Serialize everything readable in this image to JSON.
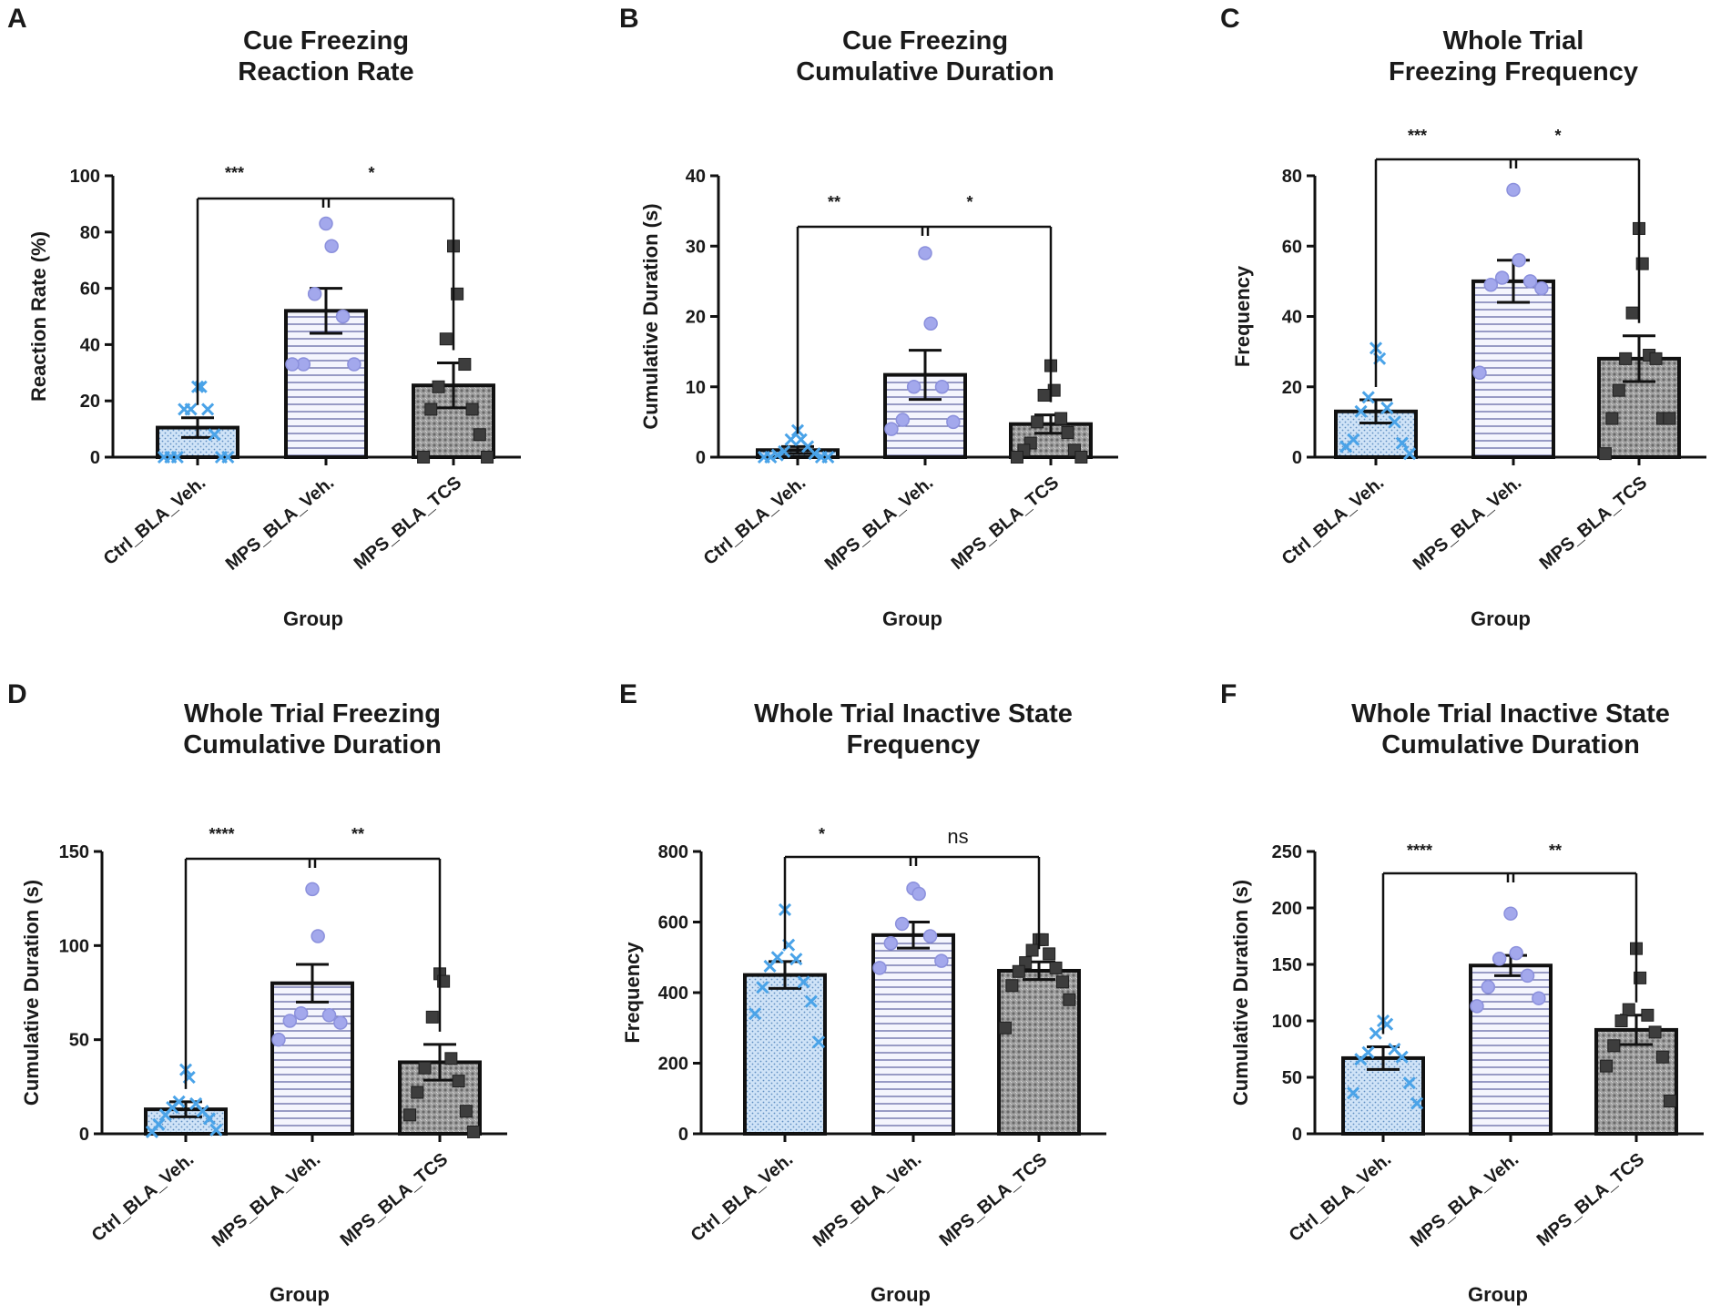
{
  "figure": {
    "colors": {
      "ctrl": "#4aa3e8",
      "ctrl_fill": "#cfe3f7",
      "mps": "#a3a8ec",
      "mps_fill": "#eef0fb",
      "tcs": "#3d3d3d",
      "tcs_fill": "#9a9a9a",
      "axis": "#111111"
    }
  },
  "chart_data": [
    {
      "id": "A",
      "letter": "A",
      "type": "bar",
      "title_lines": [
        "Cue Freezing",
        "Reaction Rate"
      ],
      "ylabel": "Reaction Rate (%)",
      "xlabel": "Group",
      "categories": [
        "Ctrl_BLA_Veh.",
        "MPS_BLA_Veh.",
        "MPS_BLA_TCS"
      ],
      "ylim": [
        0,
        100
      ],
      "yticks": [
        0,
        20,
        40,
        60,
        80,
        100
      ],
      "means": [
        10.5,
        52,
        25.5
      ],
      "sems": [
        3.5,
        8,
        8
      ],
      "points": [
        [
          25,
          25,
          17,
          17,
          17,
          8,
          0,
          0,
          0,
          0,
          0
        ],
        [
          83,
          75,
          58,
          50,
          33,
          33,
          33
        ],
        [
          75,
          58,
          42,
          33,
          25,
          17,
          17,
          8,
          0,
          0
        ]
      ],
      "significance": [
        {
          "from": 0,
          "to": 1,
          "label": "***"
        },
        {
          "from": 1,
          "to": 2,
          "label": "*"
        }
      ]
    },
    {
      "id": "B",
      "letter": "B",
      "type": "bar",
      "title_lines": [
        "Cue Freezing",
        "Cumulative Duration"
      ],
      "ylabel": "Cumulative Duration (s)",
      "xlabel": "Group",
      "categories": [
        "Ctrl_BLA_Veh.",
        "MPS_BLA_Veh.",
        "MPS_BLA_TCS"
      ],
      "ylim": [
        0,
        40
      ],
      "yticks": [
        0,
        10,
        20,
        30,
        40
      ],
      "means": [
        1.0,
        11.7,
        4.7
      ],
      "sems": [
        0.5,
        3.5,
        1.3
      ],
      "points": [
        [
          3.8,
          2.5,
          2.5,
          1.5,
          0.8,
          0.5,
          0.3,
          0,
          0,
          0,
          0
        ],
        [
          29,
          19,
          10,
          10,
          5.3,
          5,
          4
        ],
        [
          13,
          9.5,
          8.8,
          5.5,
          5,
          3.5,
          2,
          1,
          1,
          0,
          0
        ]
      ],
      "significance": [
        {
          "from": 0,
          "to": 1,
          "label": "**"
        },
        {
          "from": 1,
          "to": 2,
          "label": "*"
        }
      ]
    },
    {
      "id": "C",
      "letter": "C",
      "type": "bar",
      "title_lines": [
        "Whole Trial",
        "Freezing Frequency"
      ],
      "ylabel": "Frequency",
      "xlabel": "Group",
      "categories": [
        "Ctrl_BLA_Veh.",
        "MPS_BLA_Veh.",
        "MPS_BLA_TCS"
      ],
      "ylim": [
        0,
        80
      ],
      "yticks": [
        0,
        20,
        40,
        60,
        80
      ],
      "means": [
        13,
        50,
        28
      ],
      "sems": [
        3.3,
        6,
        6.5
      ],
      "points": [
        [
          31,
          28,
          17,
          14,
          13,
          10,
          5,
          4,
          3,
          1
        ],
        [
          76,
          56,
          51,
          50,
          49,
          48,
          24
        ],
        [
          65,
          55,
          41,
          29,
          28,
          28,
          19,
          11,
          11,
          11,
          1
        ]
      ],
      "significance": [
        {
          "from": 0,
          "to": 1,
          "label": "***"
        },
        {
          "from": 1,
          "to": 2,
          "label": "*"
        }
      ]
    },
    {
      "id": "D",
      "letter": "D",
      "type": "bar",
      "title_lines": [
        "Whole Trial Freezing",
        "Cumulative Duration"
      ],
      "ylabel": "Cumulative Duration (s)",
      "xlabel": "Group",
      "categories": [
        "Ctrl_BLA_Veh.",
        "MPS_BLA_Veh.",
        "MPS_BLA_TCS"
      ],
      "ylim": [
        0,
        150
      ],
      "yticks": [
        0,
        50,
        100,
        150
      ],
      "means": [
        13,
        80,
        38
      ],
      "sems": [
        4,
        10,
        9.5
      ],
      "points": [
        [
          34,
          30,
          17,
          16,
          14,
          12,
          10,
          8,
          5,
          2,
          1
        ],
        [
          130,
          105,
          64,
          63,
          60,
          59,
          50
        ],
        [
          85,
          81,
          62,
          40,
          35,
          28,
          22,
          12,
          10,
          1
        ]
      ],
      "significance": [
        {
          "from": 0,
          "to": 1,
          "label": "****"
        },
        {
          "from": 1,
          "to": 2,
          "label": "**"
        }
      ]
    },
    {
      "id": "E",
      "letter": "E",
      "type": "bar",
      "title_lines": [
        "Whole Trial Inactive State",
        "Frequency"
      ],
      "ylabel": "Frequency",
      "xlabel": "Group",
      "categories": [
        "Ctrl_BLA_Veh.",
        "MPS_BLA_Veh.",
        "MPS_BLA_TCS"
      ],
      "ylim": [
        0,
        800
      ],
      "yticks": [
        0,
        200,
        400,
        600,
        800
      ],
      "means": [
        450,
        563,
        462
      ],
      "sems": [
        38,
        37,
        25
      ],
      "points": [
        [
          635,
          535,
          500,
          495,
          475,
          430,
          415,
          375,
          340,
          260
        ],
        [
          695,
          680,
          595,
          560,
          540,
          490,
          470
        ],
        [
          550,
          550,
          520,
          510,
          485,
          470,
          460,
          430,
          420,
          380,
          300
        ]
      ],
      "significance": [
        {
          "from": 0,
          "to": 1,
          "label": "*"
        },
        {
          "from": 1,
          "to": 2,
          "label": "ns"
        }
      ]
    },
    {
      "id": "F",
      "letter": "F",
      "type": "bar",
      "title_lines": [
        "Whole Trial Inactive State",
        "Cumulative Duration"
      ],
      "ylabel": "Cumulative Duration (s)",
      "xlabel": "Group",
      "categories": [
        "Ctrl_BLA_Veh.",
        "MPS_BLA_Veh.",
        "MPS_BLA_TCS"
      ],
      "ylim": [
        0,
        250
      ],
      "yticks": [
        0,
        50,
        100,
        150,
        200,
        250
      ],
      "means": [
        67,
        149,
        92
      ],
      "sems": [
        10,
        9,
        13
      ],
      "points": [
        [
          100,
          97,
          89,
          75,
          72,
          68,
          66,
          45,
          36,
          27
        ],
        [
          195,
          160,
          155,
          140,
          130,
          120,
          113
        ],
        [
          164,
          138,
          110,
          105,
          100,
          90,
          78,
          68,
          60,
          29
        ]
      ],
      "significance": [
        {
          "from": 0,
          "to": 1,
          "label": "****"
        },
        {
          "from": 1,
          "to": 2,
          "label": "**"
        }
      ]
    }
  ]
}
